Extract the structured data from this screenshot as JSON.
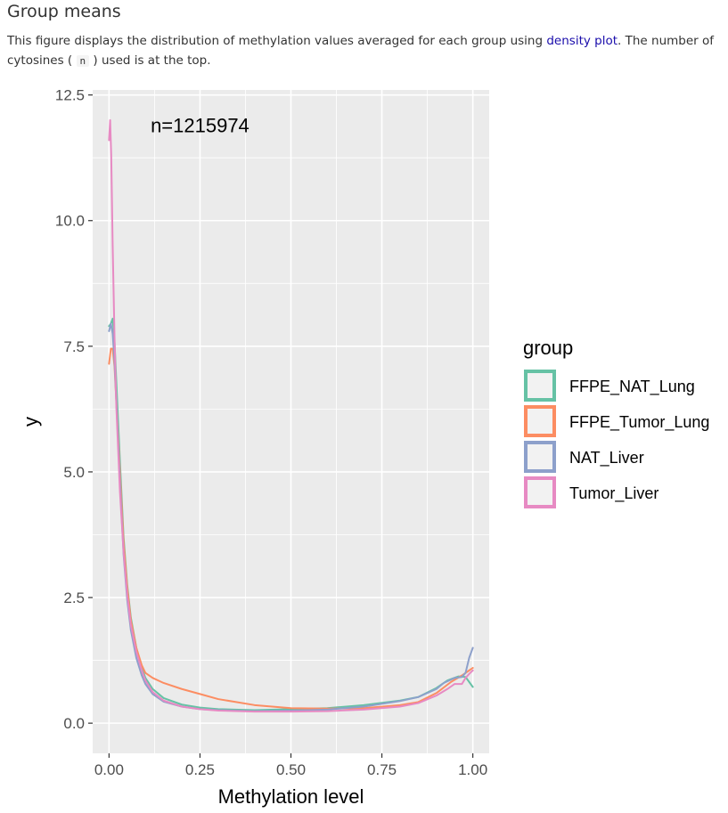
{
  "header": {
    "title": "Group means",
    "desc_before": "This figure displays the distribution of methylation values averaged for each group using ",
    "desc_link": "density plot",
    "desc_middle": ". The number of cytosines ( ",
    "desc_code": "n",
    "desc_after": " ) used is at the top."
  },
  "chart_data": {
    "type": "line",
    "title": "",
    "xlabel": "Methylation level",
    "ylabel": "y",
    "xlim": [
      -0.045,
      1.045
    ],
    "ylim": [
      -0.6,
      12.6
    ],
    "x_ticks": [
      0.0,
      0.25,
      0.5,
      0.75,
      1.0
    ],
    "x_tick_labels": [
      "0.00",
      "0.25",
      "0.50",
      "0.75",
      "1.00"
    ],
    "y_ticks": [
      0.0,
      2.5,
      5.0,
      7.5,
      10.0,
      12.5
    ],
    "y_tick_labels": [
      "0.0",
      "2.5",
      "5.0",
      "7.5",
      "10.0",
      "12.5"
    ],
    "grid": true,
    "background": "#ebebeb",
    "annotation": {
      "text": "n=1215974",
      "x": 0.25,
      "y": 11.9
    },
    "legend": {
      "title": "group",
      "position": "right"
    },
    "series": [
      {
        "name": "FFPE_NAT_Lung",
        "color": "#66c2a5",
        "points": [
          [
            0.0,
            7.9
          ],
          [
            0.005,
            7.95
          ],
          [
            0.01,
            8.05
          ],
          [
            0.015,
            7.6
          ],
          [
            0.02,
            6.8
          ],
          [
            0.03,
            5.2
          ],
          [
            0.04,
            3.7
          ],
          [
            0.05,
            2.75
          ],
          [
            0.06,
            2.1
          ],
          [
            0.075,
            1.5
          ],
          [
            0.09,
            1.1
          ],
          [
            0.1,
            0.9
          ],
          [
            0.12,
            0.68
          ],
          [
            0.15,
            0.5
          ],
          [
            0.2,
            0.37
          ],
          [
            0.25,
            0.31
          ],
          [
            0.3,
            0.28
          ],
          [
            0.4,
            0.26
          ],
          [
            0.5,
            0.28
          ],
          [
            0.6,
            0.3
          ],
          [
            0.7,
            0.36
          ],
          [
            0.8,
            0.45
          ],
          [
            0.85,
            0.52
          ],
          [
            0.9,
            0.7
          ],
          [
            0.93,
            0.85
          ],
          [
            0.96,
            0.93
          ],
          [
            0.98,
            0.92
          ],
          [
            0.99,
            0.82
          ],
          [
            1.0,
            0.72
          ]
        ]
      },
      {
        "name": "FFPE_Tumor_Lung",
        "color": "#fc8d62",
        "points": [
          [
            0.0,
            7.15
          ],
          [
            0.005,
            7.45
          ],
          [
            0.01,
            7.45
          ],
          [
            0.015,
            7.1
          ],
          [
            0.02,
            6.4
          ],
          [
            0.03,
            5.0
          ],
          [
            0.04,
            3.6
          ],
          [
            0.05,
            2.7
          ],
          [
            0.06,
            2.05
          ],
          [
            0.075,
            1.5
          ],
          [
            0.09,
            1.15
          ],
          [
            0.1,
            1.0
          ],
          [
            0.12,
            0.9
          ],
          [
            0.15,
            0.8
          ],
          [
            0.2,
            0.68
          ],
          [
            0.25,
            0.58
          ],
          [
            0.3,
            0.48
          ],
          [
            0.4,
            0.36
          ],
          [
            0.5,
            0.3
          ],
          [
            0.6,
            0.29
          ],
          [
            0.7,
            0.3
          ],
          [
            0.8,
            0.36
          ],
          [
            0.85,
            0.42
          ],
          [
            0.9,
            0.6
          ],
          [
            0.94,
            0.82
          ],
          [
            0.97,
            0.95
          ],
          [
            0.99,
            1.05
          ],
          [
            1.0,
            1.1
          ]
        ]
      },
      {
        "name": "NAT_Liver",
        "color": "#8da0cb",
        "points": [
          [
            0.0,
            7.8
          ],
          [
            0.005,
            7.95
          ],
          [
            0.01,
            7.75
          ],
          [
            0.015,
            7.2
          ],
          [
            0.02,
            6.4
          ],
          [
            0.03,
            4.8
          ],
          [
            0.04,
            3.35
          ],
          [
            0.05,
            2.45
          ],
          [
            0.06,
            1.85
          ],
          [
            0.075,
            1.3
          ],
          [
            0.09,
            0.95
          ],
          [
            0.1,
            0.78
          ],
          [
            0.12,
            0.58
          ],
          [
            0.15,
            0.43
          ],
          [
            0.2,
            0.33
          ],
          [
            0.25,
            0.28
          ],
          [
            0.3,
            0.26
          ],
          [
            0.4,
            0.24
          ],
          [
            0.5,
            0.25
          ],
          [
            0.6,
            0.27
          ],
          [
            0.7,
            0.33
          ],
          [
            0.8,
            0.44
          ],
          [
            0.85,
            0.52
          ],
          [
            0.9,
            0.68
          ],
          [
            0.92,
            0.8
          ],
          [
            0.95,
            0.9
          ],
          [
            0.97,
            0.92
          ],
          [
            0.98,
            1.0
          ],
          [
            0.99,
            1.3
          ],
          [
            1.0,
            1.5
          ]
        ]
      },
      {
        "name": "Tumor_Liver",
        "color": "#e78ac3",
        "points": [
          [
            0.0,
            11.6
          ],
          [
            0.003,
            12.0
          ],
          [
            0.006,
            11.3
          ],
          [
            0.01,
            9.5
          ],
          [
            0.015,
            7.7
          ],
          [
            0.02,
            6.3
          ],
          [
            0.03,
            4.6
          ],
          [
            0.04,
            3.4
          ],
          [
            0.05,
            2.55
          ],
          [
            0.06,
            1.95
          ],
          [
            0.075,
            1.42
          ],
          [
            0.09,
            1.05
          ],
          [
            0.1,
            0.85
          ],
          [
            0.12,
            0.62
          ],
          [
            0.15,
            0.45
          ],
          [
            0.2,
            0.33
          ],
          [
            0.25,
            0.28
          ],
          [
            0.3,
            0.25
          ],
          [
            0.4,
            0.23
          ],
          [
            0.5,
            0.23
          ],
          [
            0.6,
            0.24
          ],
          [
            0.7,
            0.27
          ],
          [
            0.8,
            0.33
          ],
          [
            0.85,
            0.4
          ],
          [
            0.9,
            0.55
          ],
          [
            0.93,
            0.68
          ],
          [
            0.95,
            0.78
          ],
          [
            0.97,
            0.78
          ],
          [
            0.98,
            0.9
          ],
          [
            0.99,
            0.98
          ],
          [
            1.0,
            1.05
          ]
        ]
      }
    ]
  }
}
